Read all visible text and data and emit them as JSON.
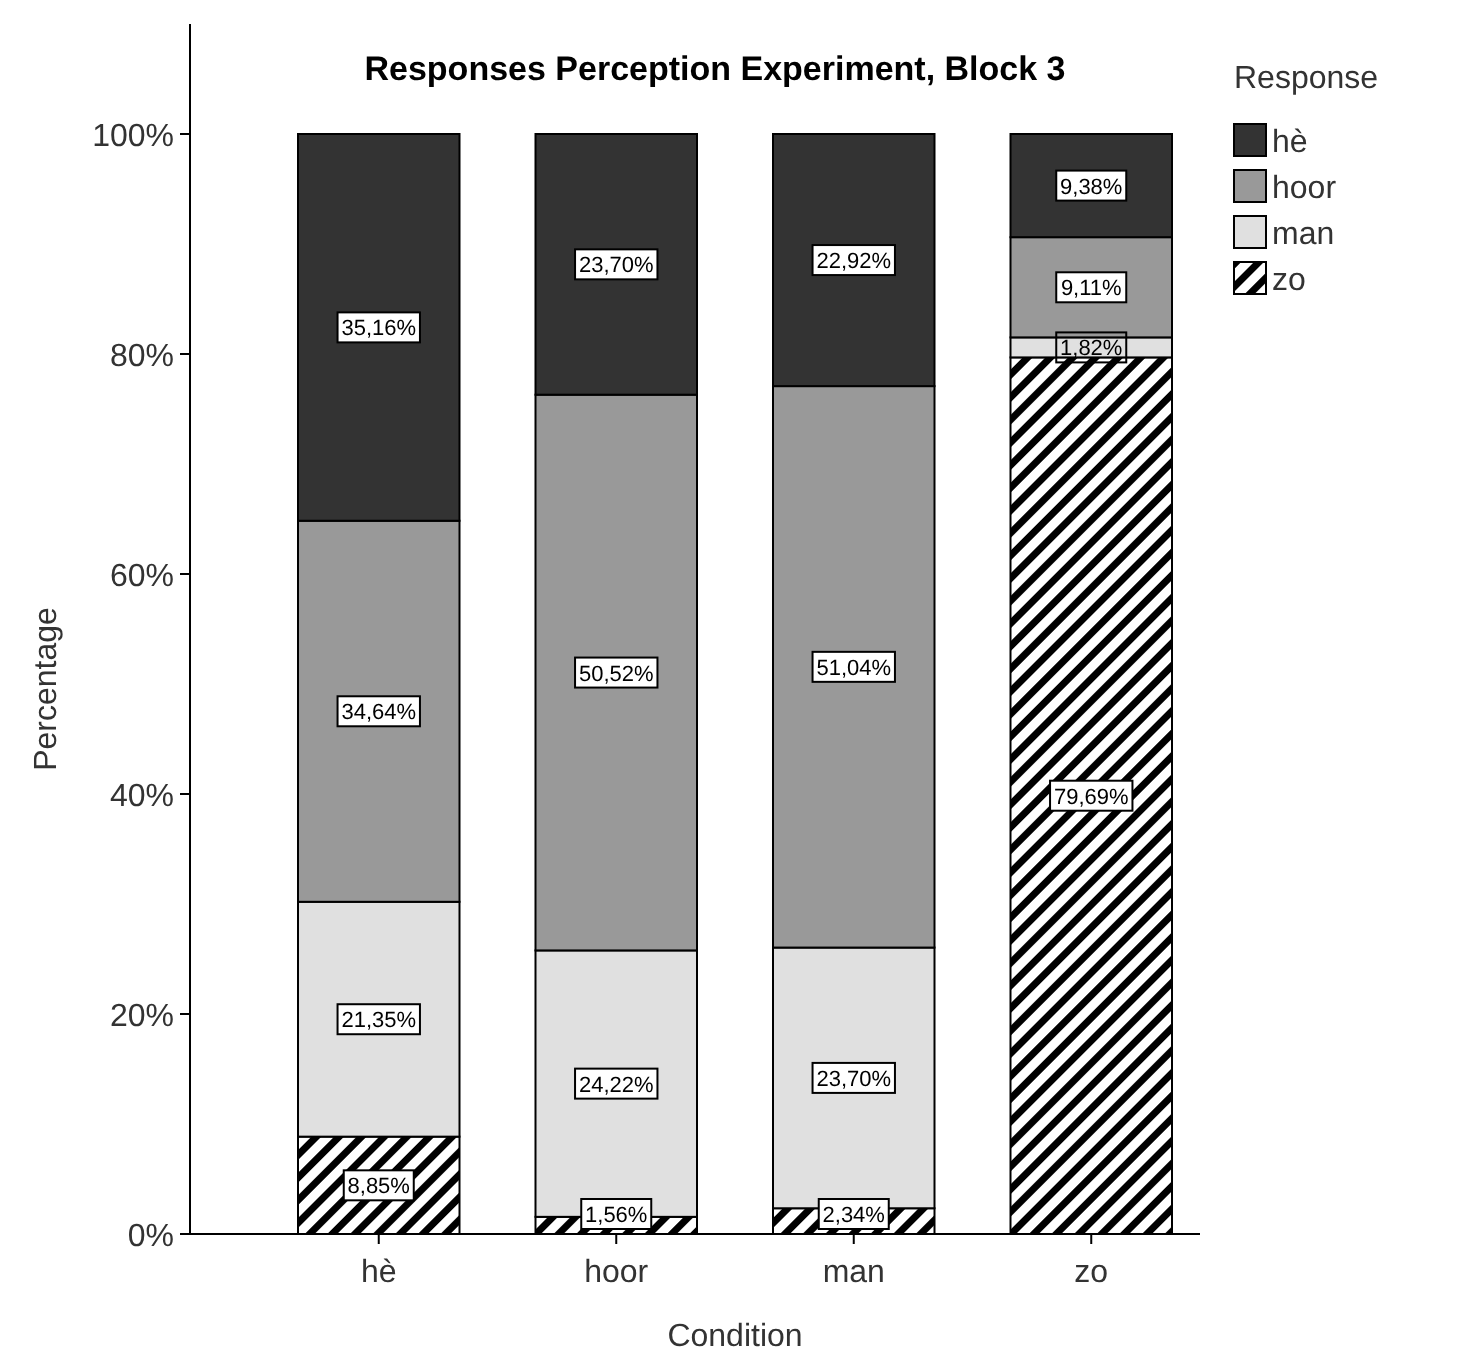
{
  "chart_data": {
    "type": "bar",
    "stacked": true,
    "title": "Responses Perception Experiment, Block 3",
    "xlabel": "Condition",
    "ylabel": "Percentage",
    "legend_title": "Response",
    "legend": "top right",
    "grid": false,
    "categories": [
      "hè",
      "hoor",
      "man",
      "zo"
    ],
    "ylim": [
      0,
      110
    ],
    "yticks": [
      {
        "value": 0,
        "label": "0%"
      },
      {
        "value": 20,
        "label": "20%"
      },
      {
        "value": 40,
        "label": "40%"
      },
      {
        "value": 60,
        "label": "60%"
      },
      {
        "value": 80,
        "label": "80%"
      },
      {
        "value": 100,
        "label": "100%"
      }
    ],
    "series": [
      {
        "name": "zo",
        "color": "#000000",
        "values": [
          8.85,
          1.56,
          2.34,
          79.69
        ],
        "value_labels": [
          "8,85%",
          "1,56%",
          "2,34%",
          "79,69%"
        ]
      },
      {
        "name": "man",
        "color": "#e0e0e0",
        "values": [
          21.35,
          24.22,
          23.7,
          1.82
        ],
        "value_labels": [
          "21,35%",
          "24,22%",
          "23,70%",
          "1,82%"
        ]
      },
      {
        "name": "hoor",
        "color": "#999999",
        "values": [
          34.64,
          50.52,
          51.04,
          9.11
        ],
        "value_labels": [
          "34,64%",
          "50,52%",
          "51,04%",
          "9,11%"
        ]
      },
      {
        "name": "hè",
        "color": "#333333",
        "values": [
          35.16,
          23.7,
          22.92,
          9.38
        ],
        "value_labels": [
          "35,16%",
          "23,70%",
          "22,92%",
          "9,38%"
        ]
      }
    ]
  }
}
